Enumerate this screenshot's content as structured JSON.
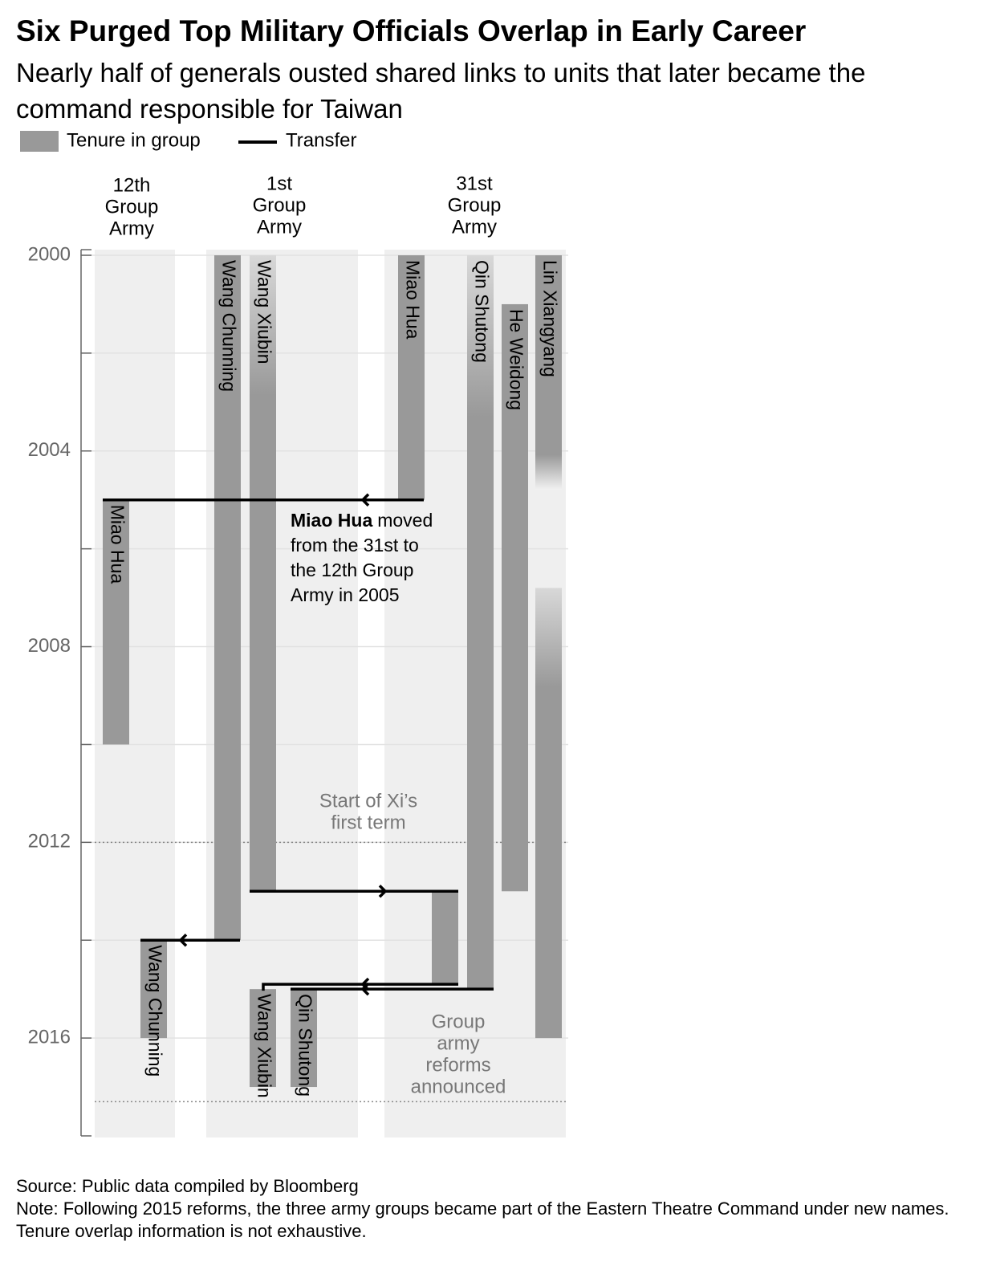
{
  "chart_data": {
    "type": "tenure-timeline",
    "title": "Six Purged Top Military Officials Overlap in Early Career",
    "subtitle": "Nearly half of generals ousted shared links to units that later became the command responsible for Taiwan",
    "legend": {
      "tenure": "Tenure in group",
      "transfer": "Transfer"
    },
    "bar_color": "#999999",
    "column_color": "#efefef",
    "grid": true,
    "ylim": [
      2000,
      2018
    ],
    "yticks": [
      2000,
      2004,
      2008,
      2012,
      2016
    ],
    "minor_yticks": [
      2002,
      2006,
      2010,
      2014
    ],
    "groups": [
      {
        "label": [
          "12th",
          "Group",
          "Army"
        ],
        "bars": [
          {
            "name": "Miao Hua",
            "start": 2005,
            "end": 2010
          },
          {
            "name": "Wang Chunning",
            "start": 2014,
            "end": 2016
          }
        ]
      },
      {
        "label": [
          "1st",
          "Group",
          "Army"
        ],
        "bars": [
          {
            "name": "Wang Chunning",
            "start": 2000,
            "end": 2014
          },
          {
            "name": "Wang Xiubin",
            "start": 2000,
            "end": 2013,
            "fade": "top"
          },
          {
            "name": "Wang Xiubin",
            "start": 2015,
            "end": 2017
          },
          {
            "name": "Qin Shutong",
            "start": 2015,
            "end": 2017
          }
        ]
      },
      {
        "label": [
          "31st",
          "Group",
          "Army"
        ],
        "bars": [
          {
            "name": "Miao Hua",
            "start": 2000,
            "end": 2005
          },
          {
            "name": null,
            "start": 2013,
            "end": 2014.9
          },
          {
            "name": "Qin Shutong",
            "start": 2000,
            "end": 2015,
            "fade": "top"
          },
          {
            "name": "He Weidong",
            "start": 2001,
            "end": 2013
          },
          {
            "name": "Lin Xiangyang",
            "start": 2000,
            "end": 2004.8,
            "fade": "bottom"
          },
          {
            "name": null,
            "start": 2006.8,
            "end": 2016,
            "fade": "top"
          }
        ]
      }
    ],
    "transfers": [
      {
        "name": "Miao Hua",
        "year": 2005
      },
      {
        "name": "Wang Xiubin",
        "year": 2013
      },
      {
        "name": "Wang Chunning",
        "year": 2014
      },
      {
        "name": "Wang Xiubin",
        "year": 2014.9
      },
      {
        "name": "Qin Shutong",
        "year": 2015
      }
    ],
    "annotation": {
      "bold": "Miao Hua",
      "lines": [
        "moved",
        "from the 31st to",
        "the 12th Group",
        "Army in 2005"
      ]
    },
    "reference_lines": [
      {
        "year": 2012,
        "label": [
          "Start of Xi’s",
          "first term"
        ]
      },
      {
        "year": 2017.3,
        "label": [
          "Group",
          "army",
          "reforms",
          "announced"
        ]
      }
    ],
    "source": "Source: Public data compiled by Bloomberg",
    "note": "Note: Following 2015 reforms, the three army groups became part of the Eastern Theatre Command under new names. Tenure overlap information is not exhaustive."
  }
}
